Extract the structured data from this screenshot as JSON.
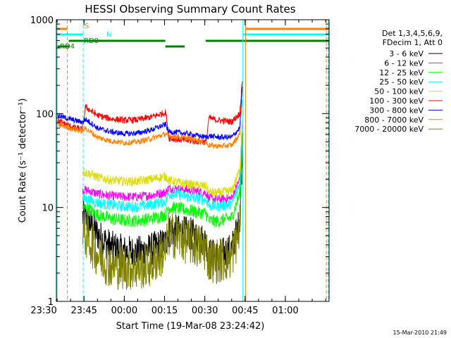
{
  "chart_data": {
    "type": "line",
    "title": "HESSI Observing Summary Count Rates",
    "xlabel": "Start Time (19-Mar-08 23:24:42)",
    "ylabel": "Count Rate (s⁻¹ detector⁻¹)",
    "y_scale": "log",
    "ylim": [
      1,
      1000
    ],
    "y_ticks": [
      "1",
      "10",
      "100",
      "1000"
    ],
    "x_range_minutes": [
      -25.3,
      76.3
    ],
    "x_ticks": [
      {
        "label": "23:30",
        "minute": -30
      },
      {
        "label": "23:45",
        "minute": -15
      },
      {
        "label": "00:00",
        "minute": 0
      },
      {
        "label": "00:15",
        "minute": 15
      },
      {
        "label": "00:30",
        "minute": 30
      },
      {
        "label": "00:45",
        "minute": 45
      },
      {
        "label": "01:00",
        "minute": 60
      }
    ],
    "legend_header": [
      "Det 1,3,4,5,6,9,",
      "FDecim 1, Att 0"
    ],
    "legend_placement": "right",
    "series": [
      {
        "name": "3 - 6 keV",
        "color": "#000000",
        "points": [
          [
            -15.5,
            8
          ],
          [
            -13,
            7
          ],
          [
            -10,
            5.2
          ],
          [
            -5,
            3.8
          ],
          [
            0,
            3.4
          ],
          [
            5,
            3.3
          ],
          [
            10,
            3.6
          ],
          [
            15.5,
            4.2
          ],
          [
            16.5,
            5.5
          ],
          [
            20,
            5.6
          ],
          [
            25,
            5.2
          ],
          [
            30.5,
            4.3
          ],
          [
            31.5,
            3.2
          ],
          [
            35,
            3
          ],
          [
            40,
            3.6
          ],
          [
            43,
            7
          ],
          [
            44,
            40
          ]
        ]
      },
      {
        "name": "6 - 12 keV",
        "color": "#ff00ff",
        "points": [
          [
            -15.5,
            15.5
          ],
          [
            -13,
            15
          ],
          [
            -10,
            14
          ],
          [
            -5,
            13.3
          ],
          [
            0,
            13
          ],
          [
            5,
            13
          ],
          [
            10,
            13.5
          ],
          [
            15.5,
            14.5
          ],
          [
            16.5,
            16
          ],
          [
            20,
            15.8
          ],
          [
            25,
            15.2
          ],
          [
            30.5,
            14.3
          ],
          [
            31.5,
            12.5
          ],
          [
            35,
            12.2
          ],
          [
            40,
            12.5
          ],
          [
            43,
            20
          ],
          [
            44,
            80
          ]
        ]
      },
      {
        "name": "12 - 25 keV",
        "color": "#00ff00",
        "points": [
          [
            -15.5,
            10
          ],
          [
            -13,
            9.5
          ],
          [
            -10,
            8.4
          ],
          [
            -5,
            7.6
          ],
          [
            0,
            7.3
          ],
          [
            5,
            7.2
          ],
          [
            10,
            7.6
          ],
          [
            15.5,
            8.4
          ],
          [
            16.5,
            10
          ],
          [
            20,
            9.8
          ],
          [
            25,
            9.2
          ],
          [
            30.5,
            8.6
          ],
          [
            31.5,
            7.2
          ],
          [
            35,
            7.1
          ],
          [
            40,
            7.8
          ],
          [
            43,
            14
          ],
          [
            44,
            60
          ]
        ]
      },
      {
        "name": "25 - 50 keV",
        "color": "#00ffff",
        "points": [
          [
            -15.5,
            12.5
          ],
          [
            -13,
            12
          ],
          [
            -10,
            11.2
          ],
          [
            -5,
            10.6
          ],
          [
            0,
            10.3
          ],
          [
            5,
            10.2
          ],
          [
            10,
            10.7
          ],
          [
            15.5,
            11.6
          ],
          [
            16.5,
            14
          ],
          [
            20,
            13.8
          ],
          [
            25,
            12.8
          ],
          [
            30.5,
            12
          ],
          [
            31.5,
            10.5
          ],
          [
            35,
            10.3
          ],
          [
            40,
            10.8
          ],
          [
            43,
            18
          ],
          [
            44,
            70
          ]
        ]
      },
      {
        "name": "50 - 100 keV",
        "color": "#dddd00",
        "points": [
          [
            -15.5,
            24
          ],
          [
            -13,
            23
          ],
          [
            -10,
            21
          ],
          [
            -5,
            19.5
          ],
          [
            0,
            19
          ],
          [
            5,
            19
          ],
          [
            10,
            20
          ],
          [
            15.5,
            21.5
          ],
          [
            16.5,
            19.5
          ],
          [
            20,
            18.5
          ],
          [
            25,
            17.5
          ],
          [
            30.5,
            16.8
          ],
          [
            31.5,
            14.5
          ],
          [
            35,
            14.3
          ],
          [
            40,
            15
          ],
          [
            43,
            25
          ],
          [
            44,
            90
          ]
        ]
      },
      {
        "name": "100 - 300 keV",
        "color": "#ff0000",
        "points": [
          [
            -24.8,
            83
          ],
          [
            -23,
            80
          ],
          [
            -20,
            73
          ],
          [
            -18,
            70
          ],
          [
            -15.5,
            68
          ],
          [
            -14.5,
            118
          ],
          [
            -12,
            105
          ],
          [
            -10,
            96
          ],
          [
            -5,
            88
          ],
          [
            0,
            85
          ],
          [
            5,
            86
          ],
          [
            10,
            92
          ],
          [
            15.5,
            103
          ],
          [
            16.5,
            55
          ],
          [
            20,
            53
          ],
          [
            25,
            51
          ],
          [
            30.5,
            50
          ],
          [
            31.5,
            90
          ],
          [
            35,
            85
          ],
          [
            40,
            82
          ],
          [
            43,
            100
          ],
          [
            44,
            230
          ]
        ]
      },
      {
        "name": "300 - 800 keV",
        "color": "#0000ff",
        "points": [
          [
            -24.8,
            96
          ],
          [
            -23,
            92
          ],
          [
            -20,
            87
          ],
          [
            -18,
            84
          ],
          [
            -15.5,
            81
          ],
          [
            -14.5,
            87
          ],
          [
            -12,
            78
          ],
          [
            -10,
            70
          ],
          [
            -5,
            64
          ],
          [
            0,
            61
          ],
          [
            5,
            62
          ],
          [
            10,
            67
          ],
          [
            15.5,
            77
          ],
          [
            16.5,
            64
          ],
          [
            20,
            63
          ],
          [
            25,
            60
          ],
          [
            30.5,
            56
          ],
          [
            31.5,
            58
          ],
          [
            35,
            56
          ],
          [
            40,
            56
          ],
          [
            43,
            70
          ],
          [
            44,
            200
          ]
        ]
      },
      {
        "name": "800 - 7000 keV",
        "color": "#ff8000",
        "points": [
          [
            -24.8,
            76
          ],
          [
            -23,
            74
          ],
          [
            -20,
            70
          ],
          [
            -18,
            67
          ],
          [
            -15.5,
            65
          ],
          [
            -14.5,
            70
          ],
          [
            -12,
            62
          ],
          [
            -10,
            56
          ],
          [
            -5,
            51
          ],
          [
            0,
            49
          ],
          [
            5,
            50
          ],
          [
            10,
            54
          ],
          [
            15.5,
            61
          ],
          [
            16.5,
            58
          ],
          [
            20,
            57
          ],
          [
            25,
            54
          ],
          [
            30.5,
            49
          ],
          [
            31.5,
            46
          ],
          [
            35,
            45
          ],
          [
            40,
            46
          ],
          [
            43,
            60
          ],
          [
            44,
            150
          ]
        ]
      },
      {
        "name": "7000 - 20000 keV",
        "color": "#808000",
        "points": [
          [
            -15.5,
            5.5
          ],
          [
            -13,
            4.5
          ],
          [
            -10,
            3.2
          ],
          [
            -5,
            2.4
          ],
          [
            0,
            2.3
          ],
          [
            5,
            2.3
          ],
          [
            10,
            2.5
          ],
          [
            15.5,
            3.5
          ],
          [
            16.5,
            5.2
          ],
          [
            20,
            4.8
          ],
          [
            25,
            4.2
          ],
          [
            30.5,
            3.6
          ],
          [
            31.5,
            2.8
          ],
          [
            35,
            2.7
          ],
          [
            40,
            3
          ],
          [
            43,
            6
          ],
          [
            44,
            35
          ]
        ]
      }
    ],
    "flag_bars": [
      {
        "label": "S",
        "color": "#ff8000",
        "segments": [
          [
            -25.3,
            -21.2
          ],
          [
            45.2,
            76.3
          ]
        ]
      },
      {
        "label": "N",
        "color": "#00ffff",
        "segments": [
          [
            -25.3,
            -15.3
          ],
          [
            44.2,
            76.3
          ]
        ]
      },
      {
        "label": "RD0",
        "color": "#008000",
        "segments": [
          [
            -20.7,
            15.3
          ],
          [
            30.3,
            76.3
          ]
        ]
      },
      {
        "label": "RD4",
        "color": "#008000",
        "segments": [
          [
            -25.3,
            -20.4
          ],
          [
            15.3,
            22.5
          ]
        ]
      }
    ],
    "markers": [
      {
        "minute": -25.0,
        "color": "#00ffff",
        "style": "solid"
      },
      {
        "minute": -21.2,
        "color": "#ff8000",
        "style": "dashed"
      },
      {
        "minute": -15.3,
        "color": "#00ffff",
        "style": "dashed"
      },
      {
        "minute": 44.2,
        "color": "#00ffff",
        "style": "solid"
      },
      {
        "minute": 45.2,
        "color": "#ff8000",
        "style": "solid"
      },
      {
        "minute": 75.3,
        "color": "#ff8000",
        "style": "dashed"
      },
      {
        "minute": 76.0,
        "color": "#00ffff",
        "style": "dashed"
      }
    ],
    "grid": false,
    "footer_stamp": "15-Mar-2010 21:49"
  }
}
